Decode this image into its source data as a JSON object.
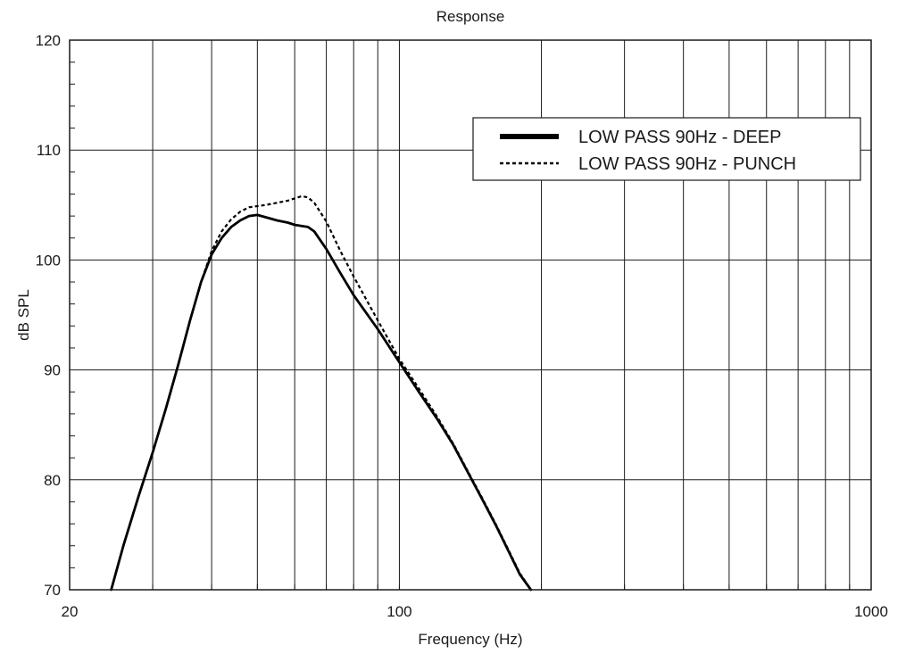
{
  "chart_data": {
    "type": "line",
    "title": "Response",
    "xlabel": "Frequency (Hz)",
    "ylabel": "dB SPL",
    "xscale": "log",
    "xlim": [
      20,
      1000
    ],
    "ylim": [
      70,
      120
    ],
    "x_tick_labels": [
      {
        "value": 20,
        "label": "20"
      },
      {
        "value": 100,
        "label": "100"
      },
      {
        "value": 1000,
        "label": "1000"
      }
    ],
    "y_ticks": [
      70,
      80,
      90,
      100,
      110,
      120
    ],
    "grid": true,
    "legend_position": "top-right",
    "series": [
      {
        "name": "LOW PASS 90Hz - DEEP",
        "style": "solid",
        "color": "#000000",
        "x": [
          24.5,
          26,
          28,
          30,
          32,
          34,
          36,
          38,
          40,
          42,
          44,
          46,
          48,
          50,
          52,
          55,
          58,
          60,
          62,
          64,
          66,
          70,
          75,
          80,
          90,
          100,
          110,
          120,
          130,
          140,
          150,
          160,
          170,
          180,
          190
        ],
        "y": [
          70,
          74,
          78.5,
          82.5,
          86.5,
          90.5,
          94.5,
          98,
          100.5,
          102,
          103,
          103.6,
          104,
          104.1,
          103.9,
          103.6,
          103.4,
          103.2,
          103.1,
          103,
          102.6,
          101,
          98.8,
          96.8,
          93.7,
          90.7,
          88,
          85.6,
          83.2,
          80.6,
          78.2,
          75.9,
          73.6,
          71.4,
          70
        ]
      },
      {
        "name": "LOW PASS 90Hz - PUNCH",
        "style": "dashed",
        "color": "#000000",
        "x": [
          24.5,
          26,
          28,
          30,
          32,
          34,
          36,
          38,
          40,
          42,
          44,
          46,
          48,
          50,
          52,
          55,
          58,
          60,
          62,
          64,
          66,
          70,
          75,
          80,
          90,
          100,
          110,
          120,
          130,
          140,
          150,
          160,
          170,
          180,
          190
        ],
        "y": [
          70,
          74,
          78.5,
          82.5,
          86.5,
          90.5,
          94.5,
          98,
          100.8,
          102.6,
          103.7,
          104.4,
          104.8,
          104.9,
          105,
          105.2,
          105.4,
          105.6,
          105.8,
          105.7,
          105.2,
          103.5,
          100.8,
          98.5,
          94.5,
          91,
          88.3,
          85.8,
          83.3,
          80.7,
          78.3,
          76,
          73.7,
          71.5,
          70
        ]
      }
    ]
  }
}
